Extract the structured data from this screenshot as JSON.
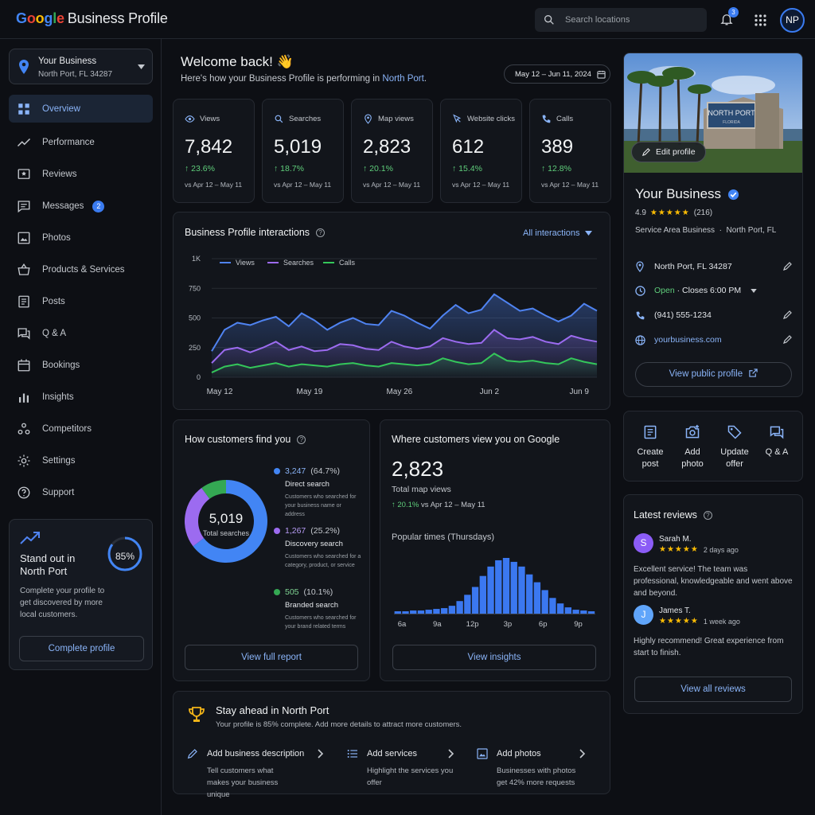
{
  "topbar": {
    "logo_brand": "Google",
    "logo_product": "Business Profile",
    "search_placeholder": "Search locations",
    "notification_count": "3",
    "avatar_initials": "NP"
  },
  "sidebar": {
    "business_name": "Your Business",
    "business_address": "North Port, FL 34287",
    "items": [
      {
        "label": "Overview",
        "icon": "grid-icon",
        "active": true
      },
      {
        "label": "Performance",
        "icon": "trending-icon"
      },
      {
        "label": "Reviews",
        "icon": "reviews-icon"
      },
      {
        "label": "Messages",
        "icon": "messages-icon",
        "count": "2"
      },
      {
        "label": "Photos",
        "icon": "photos-icon"
      },
      {
        "label": "Products & Services",
        "icon": "basket-icon"
      },
      {
        "label": "Posts",
        "icon": "posts-icon"
      },
      {
        "label": "Q & A",
        "icon": "qa-icon"
      },
      {
        "label": "Bookings",
        "icon": "calendar-icon"
      },
      {
        "label": "Insights",
        "icon": "bar-chart-icon"
      },
      {
        "label": "Competitors",
        "icon": "competitors-icon"
      },
      {
        "label": "Settings",
        "icon": "gear-icon"
      },
      {
        "label": "Support",
        "icon": "help-icon"
      }
    ],
    "standout": {
      "title": "Stand out in North Port",
      "description": "Complete your profile to get discovered by more local customers.",
      "progress_label": "85%",
      "progress": 0.85,
      "button": "Complete profile"
    }
  },
  "header": {
    "welcome": "Welcome back! 👋",
    "subtitle_prefix": "Here's how your Business Profile is performing in ",
    "subtitle_location": "North Port",
    "subtitle_suffix": ".",
    "date_range": "May 12 – Jun 11, 2024"
  },
  "stats": [
    {
      "label": "Views",
      "icon": "eye-icon",
      "value": "7,842",
      "change": "23.6%",
      "compare": "vs Apr 12 – May 11"
    },
    {
      "label": "Searches",
      "icon": "search-icon",
      "value": "5,019",
      "change": "18.7%",
      "compare": "vs Apr 12 – May 11"
    },
    {
      "label": "Map views",
      "icon": "pin-icon",
      "value": "2,823",
      "change": "20.1%",
      "compare": "vs Apr 12 – May 11"
    },
    {
      "label": "Website clicks",
      "icon": "cursor-icon",
      "value": "612",
      "change": "15.4%",
      "compare": "vs Apr 12 – May 11"
    },
    {
      "label": "Calls",
      "icon": "phone-icon",
      "value": "389",
      "change": "12.8%",
      "compare": "vs Apr 12 – May 11"
    }
  ],
  "interactions": {
    "title": "Business Profile interactions",
    "filter": "All interactions"
  },
  "chart_data": [
    {
      "type": "area",
      "y_ticks": [
        "0",
        "250",
        "500",
        "750",
        "1K"
      ],
      "ylim": [
        0,
        1000
      ],
      "x_tick_labels": [
        "May 12",
        "May 19",
        "May 26",
        "Jun 2",
        "Jun 9"
      ],
      "x_tick_index": [
        0,
        7,
        14,
        21,
        28
      ],
      "grid": true,
      "legend_position": "top-left",
      "series": [
        {
          "name": "Views",
          "color": "#4f83f1",
          "values": [
            220,
            400,
            460,
            440,
            480,
            510,
            430,
            540,
            480,
            400,
            460,
            500,
            450,
            440,
            560,
            520,
            460,
            410,
            520,
            610,
            540,
            570,
            700,
            630,
            560,
            580,
            520,
            470,
            520,
            620,
            560
          ]
        },
        {
          "name": "Searches",
          "color": "#9c6bf0",
          "values": [
            120,
            230,
            250,
            210,
            250,
            300,
            230,
            260,
            220,
            230,
            280,
            270,
            240,
            230,
            300,
            260,
            240,
            260,
            330,
            300,
            280,
            290,
            400,
            330,
            320,
            340,
            300,
            280,
            350,
            320,
            300
          ]
        },
        {
          "name": "Calls",
          "color": "#34c65a",
          "values": [
            40,
            90,
            110,
            80,
            100,
            120,
            90,
            110,
            100,
            90,
            110,
            120,
            100,
            90,
            120,
            110,
            100,
            110,
            160,
            130,
            110,
            120,
            200,
            140,
            130,
            140,
            120,
            110,
            160,
            130,
            110
          ]
        }
      ]
    },
    {
      "type": "pie",
      "title": "How customers find you",
      "center_value": "5,019",
      "center_label": "Total searches",
      "slices": [
        {
          "name": "Direct search",
          "value": 3247,
          "percent": "64.7%",
          "color": "#4285f4"
        },
        {
          "name": "Discovery search",
          "value": 1267,
          "percent": "25.2%",
          "color": "#9c6bf0"
        },
        {
          "name": "Branded search",
          "value": 505,
          "percent": "10.1%",
          "color": "#34a853"
        }
      ]
    },
    {
      "type": "bar",
      "title": "Popular times (Thursdays)",
      "x_tick_labels": [
        "6a",
        "9a",
        "12p",
        "3p",
        "6p",
        "9p"
      ],
      "color": "#3b78f0",
      "values": [
        3,
        3,
        4,
        4,
        5,
        6,
        7,
        10,
        16,
        24,
        34,
        48,
        60,
        68,
        71,
        66,
        60,
        50,
        40,
        30,
        20,
        13,
        8,
        5,
        4,
        3
      ]
    }
  ],
  "find": {
    "title": "How customers find you",
    "center_value": "5,019",
    "center_label": "Total searches",
    "sources": [
      {
        "value": "3,247",
        "percent": "(64.7%)",
        "name": "Direct search",
        "desc": "Customers who searched for your business name or address",
        "color": "#4285f4"
      },
      {
        "value": "1,267",
        "percent": "(25.2%)",
        "name": "Discovery search",
        "desc": "Customers who searched for a category, product, or service",
        "color": "#9c6bf0"
      },
      {
        "value": "505",
        "percent": "(10.1%)",
        "name": "Branded search",
        "desc": "Customers who searched for your brand related terms",
        "color": "#34a853"
      }
    ],
    "button": "View full report"
  },
  "where": {
    "title": "Where customers view you on Google",
    "value": "2,823",
    "label": "Total map views",
    "change": "20.1%",
    "compare": "vs Apr 12 – May 11",
    "popular_title": "Popular times (Thursdays)",
    "button": "View insights"
  },
  "business": {
    "edit_photo": "Edit profile",
    "sign_text": "NORTH PORT",
    "sign_sub": "FLORIDA",
    "name": "Your Business",
    "rating": "4.9",
    "stars": "★★★★★",
    "reviews_count": "(216)",
    "category": "Service Area Business",
    "location": "North Port, FL",
    "address": "North Port, FL 34287",
    "open": "Open",
    "closes": "· Closes 6:00 PM",
    "phone": "(941) 555-1234",
    "website": "yourbusiness.com",
    "view_public": "View public profile"
  },
  "quick_actions": [
    {
      "label": "Create post",
      "icon": "post-icon"
    },
    {
      "label": "Add photo",
      "icon": "add-photo-icon"
    },
    {
      "label": "Update offer",
      "icon": "tag-icon"
    },
    {
      "label": "Q & A",
      "icon": "qa-icon"
    }
  ],
  "reviews": {
    "title": "Latest reviews",
    "items": [
      {
        "initial": "S",
        "name": "Sarah M.",
        "stars": "★★★★★",
        "when": "2 days ago",
        "text": "Excellent service! The team was professional, knowledgeable and went above and beyond.",
        "color": "#8b5cf6"
      },
      {
        "initial": "J",
        "name": "James T.",
        "stars": "★★★★★",
        "when": "1 week ago",
        "text": "Highly recommend! Great experience from start to finish.",
        "color": "#60a5fa"
      }
    ],
    "button": "View all reviews"
  },
  "stay": {
    "title": "Stay ahead in North Port",
    "subtitle": "Your profile is 85% complete. Add more details to attract more customers.",
    "suggestions": [
      {
        "title": "Add business description",
        "desc": "Tell customers what makes your business unique"
      },
      {
        "title": "Add services",
        "desc": "Highlight the services you offer"
      },
      {
        "title": "Add photos",
        "desc": "Businesses with photos get 42% more requests"
      }
    ]
  }
}
